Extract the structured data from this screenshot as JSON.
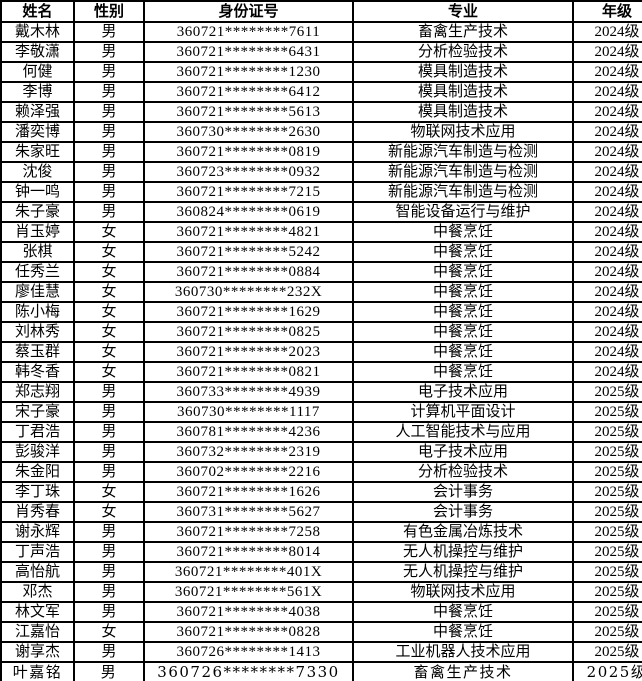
{
  "colors": {
    "background": "#ffffff",
    "text": "#000000",
    "border": "#000000"
  },
  "table": {
    "columns": [
      "姓名",
      "性别",
      "身份证号",
      "专业",
      "年级"
    ],
    "rows": [
      {
        "name": "戴木林",
        "gender": "男",
        "id_number": "360721********7611",
        "major": "畜禽生产技术",
        "grade": "2024级"
      },
      {
        "name": "李敬潇",
        "gender": "男",
        "id_number": "360721********6431",
        "major": "分析检验技术",
        "grade": "2024级"
      },
      {
        "name": "何健",
        "gender": "男",
        "id_number": "360721********1230",
        "major": "模具制造技术",
        "grade": "2024级"
      },
      {
        "name": "李博",
        "gender": "男",
        "id_number": "360721********6412",
        "major": "模具制造技术",
        "grade": "2024级"
      },
      {
        "name": "赖泽强",
        "gender": "男",
        "id_number": "360721********5613",
        "major": "模具制造技术",
        "grade": "2024级"
      },
      {
        "name": "潘奕博",
        "gender": "男",
        "id_number": "360730********2630",
        "major": "物联网技术应用",
        "grade": "2024级"
      },
      {
        "name": "朱家旺",
        "gender": "男",
        "id_number": "360721********0819",
        "major": "新能源汽车制造与检测",
        "grade": "2024级"
      },
      {
        "name": "沈俊",
        "gender": "男",
        "id_number": "360723********0932",
        "major": "新能源汽车制造与检测",
        "grade": "2024级"
      },
      {
        "name": "钟一鸣",
        "gender": "男",
        "id_number": "360721********7215",
        "major": "新能源汽车制造与检测",
        "grade": "2024级"
      },
      {
        "name": "朱子豪",
        "gender": "男",
        "id_number": "360824********0619",
        "major": "智能设备运行与维护",
        "grade": "2024级"
      },
      {
        "name": "肖玉婷",
        "gender": "女",
        "id_number": "360721********4821",
        "major": "中餐烹饪",
        "grade": "2024级"
      },
      {
        "name": "张棋",
        "gender": "女",
        "id_number": "360721********5242",
        "major": "中餐烹饪",
        "grade": "2024级"
      },
      {
        "name": "任秀兰",
        "gender": "女",
        "id_number": "360721********0884",
        "major": "中餐烹饪",
        "grade": "2024级"
      },
      {
        "name": "廖佳慧",
        "gender": "女",
        "id_number": "360730********232X",
        "major": "中餐烹饪",
        "grade": "2024级"
      },
      {
        "name": "陈小梅",
        "gender": "女",
        "id_number": "360721********1629",
        "major": "中餐烹饪",
        "grade": "2024级"
      },
      {
        "name": "刘林秀",
        "gender": "女",
        "id_number": "360721********0825",
        "major": "中餐烹饪",
        "grade": "2024级"
      },
      {
        "name": "蔡玉群",
        "gender": "女",
        "id_number": "360721********2023",
        "major": "中餐烹饪",
        "grade": "2024级"
      },
      {
        "name": "韩冬香",
        "gender": "女",
        "id_number": "360721********0821",
        "major": "中餐烹饪",
        "grade": "2024级"
      },
      {
        "name": "郑志翔",
        "gender": "男",
        "id_number": "360733********4939",
        "major": "电子技术应用",
        "grade": "2025级"
      },
      {
        "name": "宋子豪",
        "gender": "男",
        "id_number": "360730********1117",
        "major": "计算机平面设计",
        "grade": "2025级"
      },
      {
        "name": "丁君浩",
        "gender": "男",
        "id_number": "360781********4236",
        "major": "人工智能技术与应用",
        "grade": "2025级"
      },
      {
        "name": "彭骏洋",
        "gender": "男",
        "id_number": "360732********2319",
        "major": "电子技术应用",
        "grade": "2025级"
      },
      {
        "name": "朱金阳",
        "gender": "男",
        "id_number": "360702********2216",
        "major": "分析检验技术",
        "grade": "2025级"
      },
      {
        "name": "李丁珠",
        "gender": "女",
        "id_number": "360721********1626",
        "major": "会计事务",
        "grade": "2025级"
      },
      {
        "name": "肖秀春",
        "gender": "女",
        "id_number": "360731********5627",
        "major": "会计事务",
        "grade": "2025级"
      },
      {
        "name": "谢永辉",
        "gender": "男",
        "id_number": "360721********7258",
        "major": "有色金属冶炼技术",
        "grade": "2025级"
      },
      {
        "name": "丁声浩",
        "gender": "男",
        "id_number": "360721********8014",
        "major": "无人机操控与维护",
        "grade": "2025级"
      },
      {
        "name": "高怡航",
        "gender": "男",
        "id_number": "360721********401X",
        "major": "无人机操控与维护",
        "grade": "2025级"
      },
      {
        "name": "邓杰",
        "gender": "男",
        "id_number": "360721********561X",
        "major": "物联网技术应用",
        "grade": "2025级"
      },
      {
        "name": "林文军",
        "gender": "男",
        "id_number": "360721********4038",
        "major": "中餐烹饪",
        "grade": "2025级"
      },
      {
        "name": "江嘉怡",
        "gender": "女",
        "id_number": "360721********0828",
        "major": "中餐烹饪",
        "grade": "2025级"
      },
      {
        "name": "谢享杰",
        "gender": "男",
        "id_number": "360726********1413",
        "major": "工业机器人技术应用",
        "grade": "2025级"
      },
      {
        "name": "叶嘉铭",
        "gender": "男",
        "id_number": "360726********7330",
        "major": "畜禽生产技术",
        "grade": "2025级"
      }
    ]
  }
}
